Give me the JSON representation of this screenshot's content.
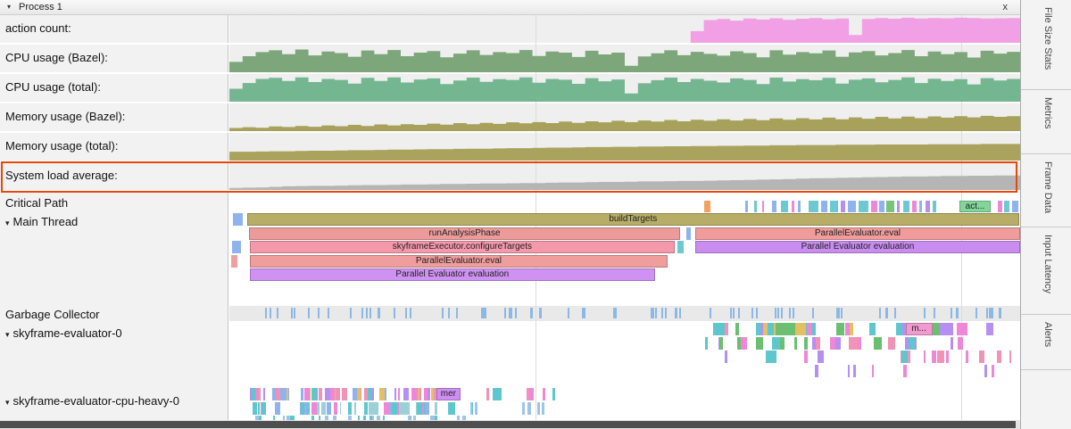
{
  "header": {
    "disclosure": "▾",
    "title": "Process 1",
    "close": "x"
  },
  "sidebar": {
    "tabs": [
      {
        "label": "File Size Stats"
      },
      {
        "label": "Metrics"
      },
      {
        "label": "Frame Data"
      },
      {
        "label": "Input Latency"
      },
      {
        "label": "Alerts"
      }
    ]
  },
  "highlight_color": "#e8470a",
  "grid_lines": [
    0.387,
    0.925
  ],
  "tracks": [
    {
      "id": "action-count",
      "kind": "counter",
      "label": "action count:",
      "color": "#f2a0e6",
      "values": [
        0,
        0,
        0,
        0,
        0,
        0,
        0,
        0,
        0,
        0,
        0,
        0,
        0,
        0,
        0,
        0,
        0,
        0,
        0,
        0,
        0,
        0,
        0,
        0,
        0,
        0,
        0,
        0,
        0,
        0,
        0,
        0,
        0,
        0,
        0,
        45,
        88,
        92,
        86,
        94,
        90,
        95,
        89,
        93,
        96,
        91,
        94,
        30,
        92,
        96,
        93,
        97,
        94,
        96,
        95,
        97,
        96,
        94,
        95,
        96
      ]
    },
    {
      "id": "cpu-bazel",
      "kind": "counter",
      "label": "CPU usage (Bazel):",
      "color": "#7da77a",
      "values": [
        40,
        62,
        78,
        85,
        70,
        88,
        65,
        80,
        74,
        60,
        84,
        70,
        86,
        62,
        76,
        82,
        58,
        72,
        85,
        67,
        78,
        74,
        86,
        63,
        80,
        76,
        59,
        83,
        69,
        76,
        25,
        61,
        73,
        85,
        66,
        79,
        71,
        64,
        81,
        74,
        58,
        85,
        68,
        78,
        73,
        84,
        60,
        77,
        82,
        65,
        74,
        86,
        62,
        80,
        70,
        78,
        57,
        83,
        72,
        79
      ]
    },
    {
      "id": "cpu-total",
      "kind": "counter",
      "label": "CPU usage (total):",
      "color": "#74b690",
      "values": [
        50,
        72,
        88,
        92,
        80,
        94,
        76,
        88,
        84,
        70,
        92,
        80,
        94,
        74,
        86,
        90,
        68,
        82,
        93,
        77,
        87,
        84,
        94,
        73,
        88,
        85,
        69,
        91,
        79,
        86,
        32,
        71,
        83,
        93,
        76,
        88,
        81,
        74,
        90,
        84,
        68,
        93,
        78,
        87,
        83,
        92,
        70,
        85,
        90,
        75,
        84,
        94,
        72,
        89,
        80,
        87,
        67,
        91,
        82,
        88
      ]
    },
    {
      "id": "mem-bazel",
      "kind": "counter",
      "label": "Memory usage (Bazel):",
      "color": "#a8a15c",
      "values": [
        12,
        15,
        13,
        18,
        16,
        20,
        17,
        22,
        19,
        24,
        20,
        26,
        22,
        27,
        24,
        29,
        25,
        31,
        27,
        32,
        28,
        34,
        30,
        35,
        31,
        37,
        32,
        38,
        34,
        40,
        35,
        41,
        37,
        43,
        38,
        44,
        40,
        46,
        41,
        47,
        42,
        49,
        44,
        50,
        45,
        52,
        46,
        53,
        48,
        55,
        49,
        56,
        50,
        57,
        52,
        58,
        53,
        59,
        55,
        58
      ]
    },
    {
      "id": "mem-total",
      "kind": "counter",
      "label": "Memory usage (total):",
      "color": "#aaa35e",
      "values": [
        34,
        34,
        35,
        36,
        36,
        37,
        38,
        38,
        39,
        40,
        40,
        41,
        42,
        42,
        43,
        44,
        44,
        45,
        46,
        46,
        47,
        48,
        48,
        49,
        50,
        50,
        51,
        52,
        52,
        53,
        53,
        54,
        54,
        55,
        55,
        56,
        56,
        57,
        57,
        58,
        58,
        59,
        59,
        60,
        60,
        60,
        61,
        61,
        61,
        62,
        62,
        62,
        62,
        63,
        63,
        63,
        63,
        64,
        64,
        64
      ]
    },
    {
      "id": "sysload",
      "kind": "counter",
      "label": "System load average:",
      "color": "#b5b5b5",
      "highlighted": true,
      "values": [
        8,
        9,
        10,
        12,
        14,
        15,
        16,
        16,
        17,
        18,
        19,
        19,
        20,
        21,
        21,
        22,
        23,
        23,
        24,
        25,
        25,
        26,
        27,
        27,
        28,
        29,
        29,
        30,
        31,
        31,
        32,
        33,
        33,
        34,
        35,
        35,
        36,
        37,
        38,
        39,
        40,
        41,
        42,
        44,
        45,
        46,
        47,
        48,
        49,
        50,
        51,
        52,
        52,
        53,
        54,
        54,
        55,
        55,
        56,
        56
      ]
    },
    {
      "id": "critical-path",
      "kind": "slices",
      "label": "Critical Path",
      "rows": [
        [
          [
            0.6,
            0.008,
            "#f0a25e"
          ],
          [
            0.652,
            0.004,
            "#8fb3ee"
          ],
          [
            0.664,
            0.003,
            "#6cc9d2"
          ],
          [
            0.674,
            0.002,
            "#ee87d7"
          ],
          [
            0.686,
            0.006,
            "#8fb3ee"
          ],
          [
            0.697,
            0.01,
            "#6cc9d2"
          ],
          [
            0.711,
            0.004,
            "#ee87d7"
          ],
          [
            0.719,
            0.003,
            "#8fb3ee"
          ],
          [
            0.733,
            0.012,
            "#6cc9d2"
          ],
          [
            0.748,
            0.008,
            "#8fb3ee"
          ],
          [
            0.76,
            0.01,
            "#6cc9d2"
          ],
          [
            0.773,
            0.006,
            "#b78ff0"
          ],
          [
            0.782,
            0.01,
            "#8fb3ee"
          ],
          [
            0.796,
            0.012,
            "#6cc9d2"
          ],
          [
            0.811,
            0.008,
            "#ee87d7"
          ],
          [
            0.822,
            0.006,
            "#8fb3ee"
          ],
          [
            0.831,
            0.01,
            "#77c47a"
          ],
          [
            0.844,
            0.004,
            "#b78ff0"
          ],
          [
            0.852,
            0.008,
            "#6cc9d2"
          ],
          [
            0.863,
            0.006,
            "#ee87d7"
          ],
          [
            0.872,
            0.004,
            "#8fb3ee"
          ],
          [
            0.88,
            0.006,
            "#b78ff0"
          ],
          [
            0.889,
            0.005,
            "#6cc9d2"
          ],
          [
            0.923,
            0.04,
            "#82d69a",
            "act..."
          ],
          [
            0.972,
            0.005,
            "#ee87d7"
          ],
          [
            0.98,
            0.007,
            "#6cc9d2"
          ],
          [
            0.99,
            0.008,
            "#8fb3ee"
          ]
        ]
      ]
    },
    {
      "id": "main-thread",
      "kind": "thread",
      "label": "Main Thread",
      "disclosure": "▾",
      "rows": [
        [
          [
            0.004,
            0.013,
            "#8fb3ee"
          ],
          [
            0.022,
            0.977,
            "#b7ad66",
            "buildTargets"
          ]
        ],
        [
          [
            0.025,
            0.545,
            "#ec9b9b",
            "runAnalysisPhase"
          ],
          [
            0.578,
            0.006,
            "#8fb3ee"
          ],
          [
            0.589,
            0.411,
            "#f09c9c",
            "ParallelEvaluator.eval"
          ]
        ],
        [
          [
            0.003,
            0.012,
            "#8fb3ee"
          ],
          [
            0.026,
            0.537,
            "#f498ab",
            "skyframeExecutor.configureTargets"
          ],
          [
            0.567,
            0.007,
            "#6cc9d2"
          ],
          [
            0.589,
            0.411,
            "#c98df0",
            "Parallel Evaluator evaluation"
          ]
        ],
        [
          [
            0.002,
            0.008,
            "#f0a0a0"
          ],
          [
            0.026,
            0.528,
            "#ef9d9d",
            "ParallelEvaluator.eval"
          ]
        ],
        [
          [
            0.026,
            0.512,
            "#cf92f2",
            "Parallel Evaluator evaluation"
          ]
        ]
      ]
    },
    {
      "id": "gc",
      "kind": "ticks",
      "label": "Garbage Collector",
      "ticks": {
        "seed": 7,
        "count": 80,
        "range": [
          0.04,
          0.995
        ],
        "color": "#8cb8e6"
      }
    },
    {
      "id": "sk-eval-0",
      "kind": "thread",
      "label": "skyframe-evaluator-0",
      "disclosure": "▾",
      "rows_random": [
        [
          {
            "seed": 21,
            "count": 26,
            "range": [
              0.592,
              0.995
            ],
            "wmin": 0.004,
            "wmax": 0.018,
            "colors": [
              "#ee87d7",
              "#6cbf70",
              "#5ec7cd",
              "#b78ff0",
              "#f093b6",
              "#e2c063"
            ]
          }
        ],
        [
          {
            "seed": 22,
            "count": 26,
            "range": [
              0.6,
              0.995
            ],
            "wmin": 0.003,
            "wmax": 0.015,
            "colors": [
              "#ee87d7",
              "#6cbf70",
              "#5ec7cd",
              "#b78ff0",
              "#f093b6"
            ]
          }
        ],
        [
          {
            "seed": 23,
            "count": 16,
            "range": [
              0.6,
              0.995
            ],
            "wmin": 0.002,
            "wmax": 0.01,
            "colors": [
              "#ee87d7",
              "#5ec7cd",
              "#b78ff0",
              "#f093b6"
            ]
          }
        ],
        [
          {
            "seed": 24,
            "count": 7,
            "range": [
              0.63,
              0.98
            ],
            "wmin": 0.002,
            "wmax": 0.006,
            "colors": [
              "#ee87d7",
              "#5ec7cd",
              "#b78ff0"
            ]
          }
        ]
      ],
      "label_slices": [
        {
          "row": 0,
          "x": 0.855,
          "w": 0.034,
          "label": "m...",
          "color": "#f09ad0"
        }
      ]
    },
    {
      "id": "sk-eval-cpu-0",
      "kind": "thread",
      "label": "skyframe-evaluator-cpu-heavy-0",
      "disclosure": "▾",
      "rows_random": [
        [
          {
            "seed": 31,
            "count": 55,
            "range": [
              0.024,
              0.285
            ],
            "wmin": 0.002,
            "wmax": 0.008,
            "colors": [
              "#5ec7cd",
              "#ee87d7",
              "#f093b6",
              "#8fb3ee",
              "#b78ff0",
              "#e2c063"
            ]
          },
          {
            "seed": 32,
            "count": 9,
            "range": [
              0.3,
              0.44
            ],
            "wmin": 0.002,
            "wmax": 0.006,
            "colors": [
              "#5ec7cd",
              "#ee87d7",
              "#f093b6"
            ]
          }
        ],
        [
          {
            "seed": 33,
            "count": 45,
            "range": [
              0.024,
              0.285
            ],
            "wmin": 0.002,
            "wmax": 0.007,
            "colors": [
              "#5ec7cd",
              "#8fb3ee",
              "#ee87d7",
              "#9ad0d6"
            ]
          },
          {
            "seed": 34,
            "count": 7,
            "range": [
              0.29,
              0.4
            ],
            "wmin": 0.002,
            "wmax": 0.005,
            "colors": [
              "#9ec4ea",
              "#5ec7cd"
            ]
          }
        ],
        [
          {
            "seed": 35,
            "count": 30,
            "range": [
              0.024,
              0.3
            ],
            "wmin": 0.002,
            "wmax": 0.005,
            "colors": [
              "#9ec4ea",
              "#5ec7cd"
            ]
          }
        ]
      ],
      "label_slices": [
        {
          "row": 0,
          "x": 0.262,
          "w": 0.03,
          "label": "mer",
          "color": "#cf8ff2"
        }
      ]
    }
  ]
}
